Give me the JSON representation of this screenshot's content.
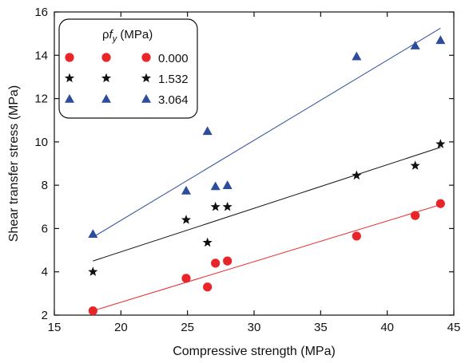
{
  "chart_data": {
    "type": "scatter",
    "title": "",
    "xlabel": "Compressive strength (MPa)",
    "ylabel": "Shear transfer stress (MPa)",
    "xlim": [
      15,
      45
    ],
    "ylim": [
      2,
      16
    ],
    "xticks": [
      15,
      20,
      25,
      30,
      35,
      40,
      45
    ],
    "yticks": [
      2,
      4,
      6,
      8,
      10,
      12,
      14,
      16
    ],
    "grid": false,
    "legend": {
      "position": "top-left",
      "title_rho": "ρ",
      "title_f": "f",
      "title_sub": "y",
      "title_unit": " (MPa)"
    },
    "series": [
      {
        "name": "0.000",
        "marker": "circle",
        "color": "#e8262a",
        "points": [
          [
            17.9,
            2.2
          ],
          [
            24.9,
            3.7
          ],
          [
            26.5,
            3.3
          ],
          [
            27.1,
            4.4
          ],
          [
            28.0,
            4.5
          ],
          [
            37.7,
            5.65
          ],
          [
            42.1,
            6.6
          ],
          [
            44.0,
            7.15
          ]
        ],
        "fit": [
          [
            17.9,
            2.2
          ],
          [
            44.0,
            7.1
          ]
        ]
      },
      {
        "name": "1.532",
        "marker": "star",
        "color": "#111111",
        "points": [
          [
            17.9,
            4.0
          ],
          [
            24.9,
            6.4
          ],
          [
            26.5,
            5.35
          ],
          [
            27.1,
            7.0
          ],
          [
            28.0,
            7.0
          ],
          [
            37.7,
            8.45
          ],
          [
            42.1,
            8.9
          ],
          [
            44.0,
            9.9
          ]
        ],
        "fit": [
          [
            17.9,
            4.5
          ],
          [
            44.0,
            9.75
          ]
        ]
      },
      {
        "name": "3.064",
        "marker": "triangle",
        "color": "#2e4c9e",
        "points": [
          [
            17.9,
            5.75
          ],
          [
            24.9,
            7.75
          ],
          [
            26.5,
            10.5
          ],
          [
            27.1,
            7.95
          ],
          [
            28.0,
            8.0
          ],
          [
            37.7,
            13.95
          ],
          [
            42.1,
            14.45
          ],
          [
            44.0,
            14.7
          ]
        ],
        "fit": [
          [
            17.9,
            5.6
          ],
          [
            44.0,
            15.25
          ]
        ]
      }
    ]
  }
}
